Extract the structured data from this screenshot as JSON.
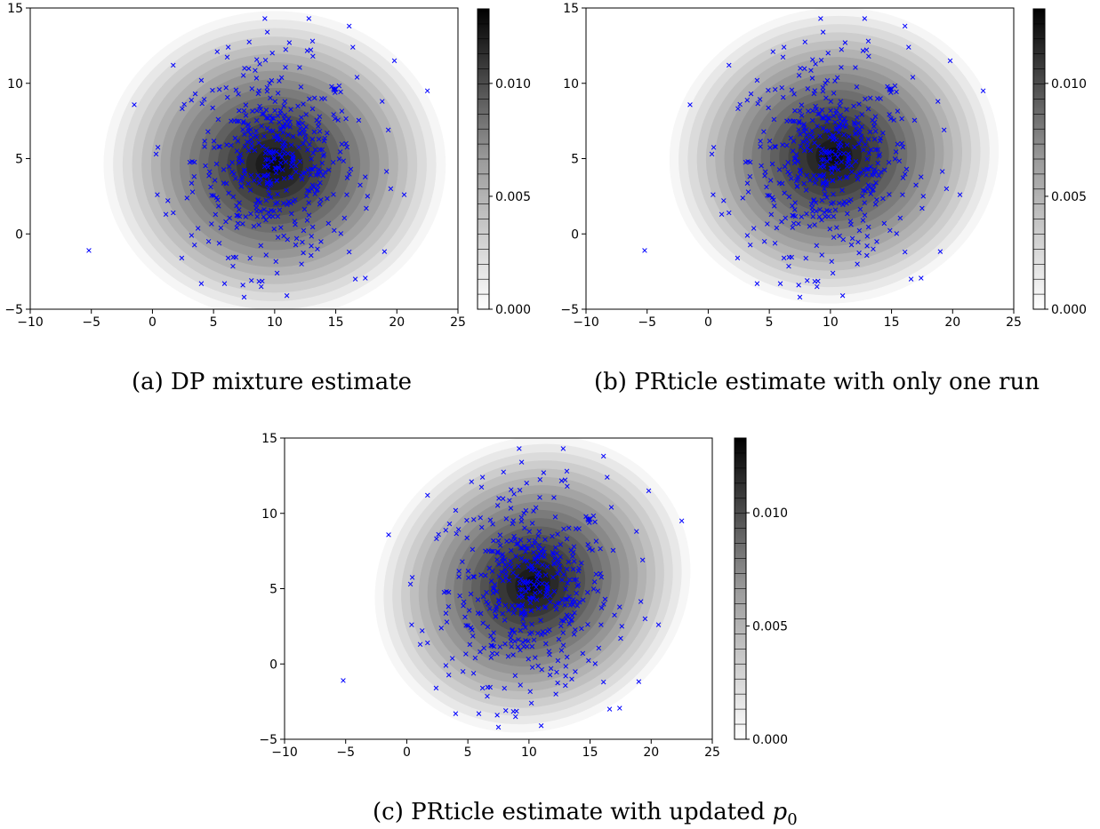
{
  "figure": {
    "caption_a": "(a) DP mixture estimate",
    "caption_b": "(b) PRticle estimate with only one run",
    "caption_c_prefix": "(c) PRticle estimate with updated ",
    "caption_c_symbol": "p",
    "caption_c_subscript": "0"
  },
  "chart_data": [
    {
      "id": "a",
      "type": "scatter",
      "title": "(a) DP mixture estimate",
      "xlim": [
        -10,
        25
      ],
      "ylim": [
        -5,
        15
      ],
      "xticks": [
        -10,
        -5,
        0,
        5,
        10,
        15,
        20,
        25
      ],
      "yticks": [
        -5,
        0,
        5,
        10,
        15
      ],
      "marker": "x",
      "marker_color": "#0000ff",
      "background": "filled density contours (grayscale)",
      "density_shape": "roughly elliptical, centered near (10, 5)",
      "colorbar": {
        "ticks": [
          0.0,
          0.005,
          0.01
        ],
        "tick_labels": [
          "0.000",
          "0.005",
          "0.010"
        ],
        "max": 0.0133,
        "colormap": "white-to-black"
      }
    },
    {
      "id": "b",
      "type": "scatter",
      "title": "(b) PRticle estimate with only one run",
      "xlim": [
        -10,
        25
      ],
      "ylim": [
        -5,
        15
      ],
      "xticks": [
        -10,
        -5,
        0,
        5,
        10,
        15,
        20,
        25
      ],
      "yticks": [
        -5,
        0,
        5,
        10,
        15
      ],
      "marker": "x",
      "marker_color": "#0000ff",
      "background": "filled density contours (grayscale)",
      "density_shape": "irregular, peak near (10, 6)",
      "colorbar": {
        "ticks": [
          0.0,
          0.005,
          0.01
        ],
        "tick_labels": [
          "0.000",
          "0.005",
          "0.010"
        ],
        "max": 0.0133,
        "colormap": "white-to-black"
      }
    },
    {
      "id": "c",
      "type": "scatter",
      "title": "(c) PRticle estimate with updated p0",
      "xlim": [
        -10,
        25
      ],
      "ylim": [
        -5,
        15
      ],
      "xticks": [
        -10,
        -5,
        0,
        5,
        10,
        15,
        20,
        25
      ],
      "yticks": [
        -5,
        0,
        5,
        10,
        15
      ],
      "marker": "x",
      "marker_color": "#0000ff",
      "background": "filled density contours (grayscale)",
      "density_shape": "smooth, tilted, peak near (10, 6)",
      "colorbar": {
        "ticks": [
          0.0,
          0.005,
          0.01
        ],
        "tick_labels": [
          "0.000",
          "0.005",
          "0.010"
        ],
        "max": 0.0133,
        "colormap": "white-to-black"
      }
    }
  ],
  "scatter_points": [
    [
      -5.2,
      -1.1
    ],
    [
      22.5,
      9.5
    ],
    [
      20.6,
      2.6
    ],
    [
      19.8,
      11.5
    ],
    [
      19.5,
      3.0
    ],
    [
      19.3,
      6.9
    ],
    [
      18.8,
      8.8
    ],
    [
      17.5,
      1.7
    ],
    [
      17.6,
      2.5
    ],
    [
      16.6,
      -3.0
    ],
    [
      16.1,
      -1.2
    ],
    [
      16.4,
      12.4
    ],
    [
      16.1,
      13.8
    ],
    [
      15.9,
      2.6
    ],
    [
      12.8,
      14.3
    ],
    [
      9.2,
      14.3
    ],
    [
      9.4,
      13.4
    ],
    [
      11.2,
      12.7
    ],
    [
      13.1,
      12.8
    ],
    [
      6.2,
      12.4
    ],
    [
      5.3,
      12.1
    ],
    [
      1.7,
      11.2
    ],
    [
      4.0,
      10.2
    ],
    [
      3.5,
      9.3
    ],
    [
      2.6,
      8.6
    ],
    [
      0.3,
      5.3
    ],
    [
      0.4,
      2.6
    ],
    [
      1.1,
      1.3
    ],
    [
      1.7,
      1.4
    ],
    [
      2.4,
      -1.6
    ],
    [
      4.0,
      -3.3
    ],
    [
      5.9,
      -3.3
    ],
    [
      7.5,
      -4.2
    ],
    [
      7.4,
      -3.4
    ],
    [
      8.1,
      -3.1
    ],
    [
      8.9,
      -3.5
    ],
    [
      11.0,
      -4.1
    ],
    [
      12.2,
      -2.0
    ],
    [
      10.2,
      -2.6
    ],
    [
      3.2,
      -0.1
    ],
    [
      4.6,
      -0.5
    ],
    [
      6.2,
      -1.6
    ],
    [
      9.3,
      -1.4
    ],
    [
      13.0,
      -0.8
    ],
    [
      14.4,
      0.7
    ],
    [
      13.5,
      -1.0
    ],
    [
      5.6,
      0.4
    ],
    [
      7.0,
      0.7
    ],
    [
      8.3,
      0.5
    ],
    [
      11.8,
      -0.3
    ]
  ]
}
